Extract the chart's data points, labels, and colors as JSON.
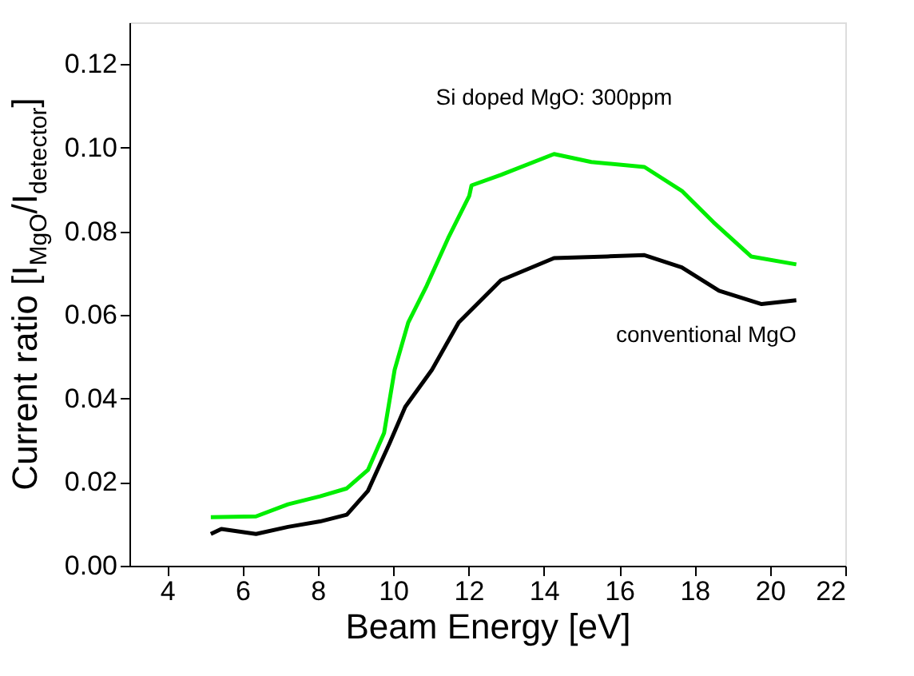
{
  "chart_data": {
    "type": "line",
    "xlabel": "Beam Energy [eV]",
    "ylabel": "Current ratio [I$_{MgO}$/I$_{detector}$]",
    "xlim": [
      3,
      22
    ],
    "xticks": [
      4,
      6,
      8,
      10,
      12,
      14,
      16,
      18,
      20,
      22
    ],
    "ylim": [
      0,
      0.13
    ],
    "yticks": [
      {
        "value": 0,
        "label": "0.00"
      },
      0.02,
      0.04,
      0.06,
      0.08,
      {
        "value": 0.1,
        "label": "0.10"
      },
      0.12
    ],
    "grid": false,
    "legend": false,
    "marker": "none",
    "line_style": "solid",
    "series": [
      {
        "name": "Si doped MgO: 300ppm",
        "color": "#00ee00",
        "x": [
          5.16,
          6.36,
          7.21,
          8.06,
          8.77,
          9.33,
          9.76,
          10.04,
          10.4,
          10.89,
          11.46,
          12.02,
          12.08,
          12.86,
          14.27,
          15.26,
          16.67,
          17.66,
          18.5,
          19.5,
          20.7
        ],
        "values": [
          0.0116,
          0.0118,
          0.0147,
          0.0166,
          0.0185,
          0.0229,
          0.0318,
          0.0469,
          0.0582,
          0.067,
          0.0784,
          0.0885,
          0.091,
          0.0935,
          0.0985,
          0.0966,
          0.0954,
          0.0897,
          0.0822,
          0.074,
          0.0721
        ]
      },
      {
        "name": "conventional MgO",
        "color": "#000000",
        "x": [
          5.16,
          5.44,
          6.36,
          7.21,
          8.06,
          8.77,
          9.33,
          9.9,
          10.32,
          11.03,
          11.74,
          12.86,
          14.27,
          15.68,
          16.67,
          17.66,
          18.65,
          19.78,
          20.7
        ],
        "values": [
          0.0076,
          0.0088,
          0.0076,
          0.0093,
          0.0106,
          0.0122,
          0.0179,
          0.0292,
          0.038,
          0.0469,
          0.0582,
          0.0683,
          0.0736,
          0.074,
          0.0743,
          0.0714,
          0.0658,
          0.0626,
          0.0635
        ]
      }
    ]
  }
}
